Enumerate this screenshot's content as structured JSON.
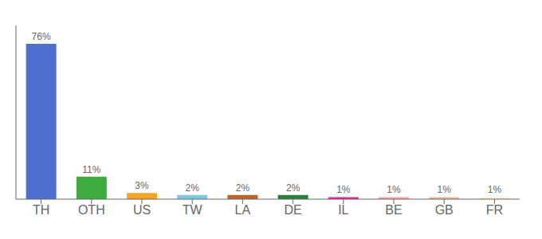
{
  "chart_data": {
    "type": "bar",
    "categories": [
      "TH",
      "OTH",
      "US",
      "TW",
      "LA",
      "DE",
      "IL",
      "BE",
      "GB",
      "FR"
    ],
    "values": [
      76,
      11,
      3,
      2,
      2,
      2,
      1,
      1,
      1,
      1
    ],
    "value_labels": [
      "76%",
      "11%",
      "3%",
      "2%",
      "2%",
      "2%",
      "1%",
      "1%",
      "1%",
      "1%"
    ],
    "colors": [
      "#4f6fd0",
      "#3dab3d",
      "#f5a623",
      "#7ec8e3",
      "#c0622b",
      "#2d7d3a",
      "#e91e8c",
      "#f4a0b0",
      "#e8b89a",
      "#f5f0cc"
    ],
    "ylim": [
      0,
      85
    ],
    "data_labels": true,
    "tick_labels": "x",
    "grid": false
  }
}
